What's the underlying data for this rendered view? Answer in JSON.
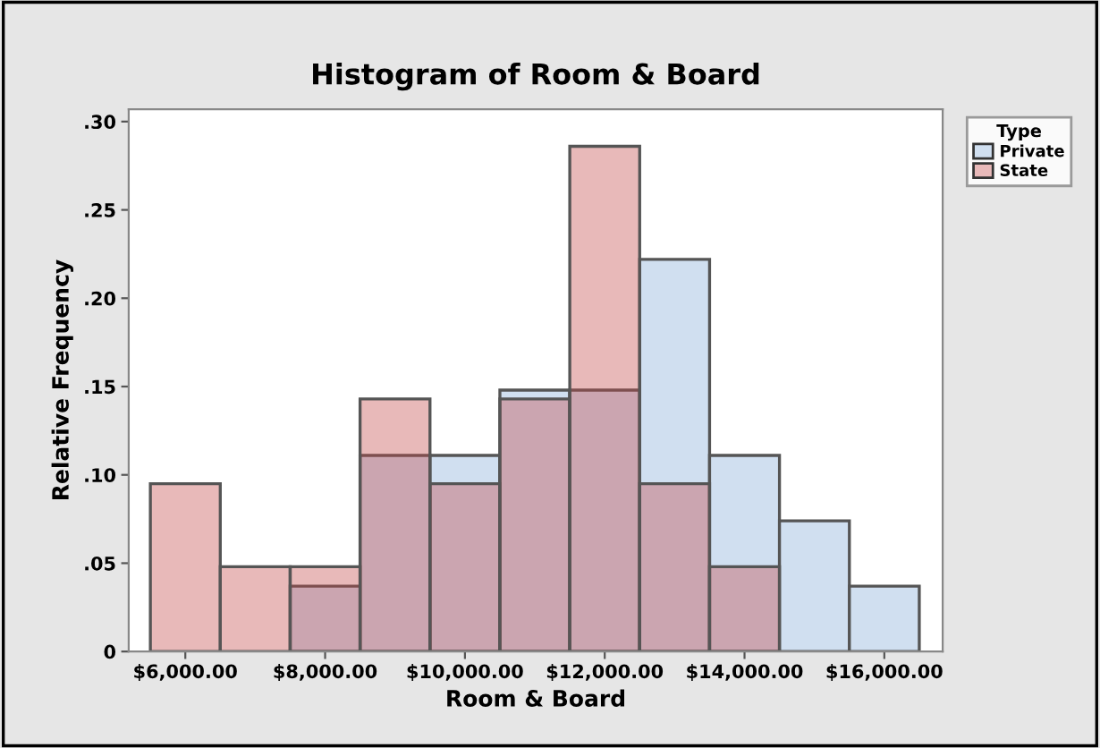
{
  "chart_data": {
    "type": "histogram",
    "title": "Histogram of Room & Board",
    "xlabel": "Room & Board",
    "ylabel": "Relative Frequency",
    "legend_title": "Type",
    "bins": [
      5500,
      6500,
      7500,
      8500,
      9500,
      10500,
      11500,
      12500,
      13500,
      14500,
      15500,
      16500
    ],
    "series": [
      {
        "name": "Private",
        "color": "#d0dff0",
        "values": [
          0,
          0,
          0.037,
          0.111,
          0.111,
          0.148,
          0.148,
          0.222,
          0.111,
          0.074,
          0.037
        ]
      },
      {
        "name": "State",
        "color": "#e8b9b9",
        "values": [
          0.095,
          0.048,
          0.048,
          0.143,
          0.095,
          0.143,
          0.286,
          0.095,
          0.048,
          0,
          0
        ]
      }
    ],
    "xlim": [
      5190,
      16835
    ],
    "ylim": [
      0,
      0.307
    ],
    "xticks": [
      {
        "value": 6000,
        "label": "$6,000.00"
      },
      {
        "value": 8000,
        "label": "$8,000.00"
      },
      {
        "value": 10000,
        "label": "$10,000.00"
      },
      {
        "value": 12000,
        "label": "$12,000.00"
      },
      {
        "value": 14000,
        "label": "$14,000.00"
      },
      {
        "value": 16000,
        "label": "$16,000.00"
      }
    ],
    "yticks": [
      {
        "value": 0,
        "label": "0"
      },
      {
        "value": 0.05,
        "label": ".05"
      },
      {
        "value": 0.1,
        "label": ".10"
      },
      {
        "value": 0.15,
        "label": ".15"
      },
      {
        "value": 0.2,
        "label": ".20"
      },
      {
        "value": 0.25,
        "label": ".25"
      },
      {
        "value": 0.3,
        "label": ".30"
      }
    ],
    "grid": false,
    "legend": "top right"
  }
}
